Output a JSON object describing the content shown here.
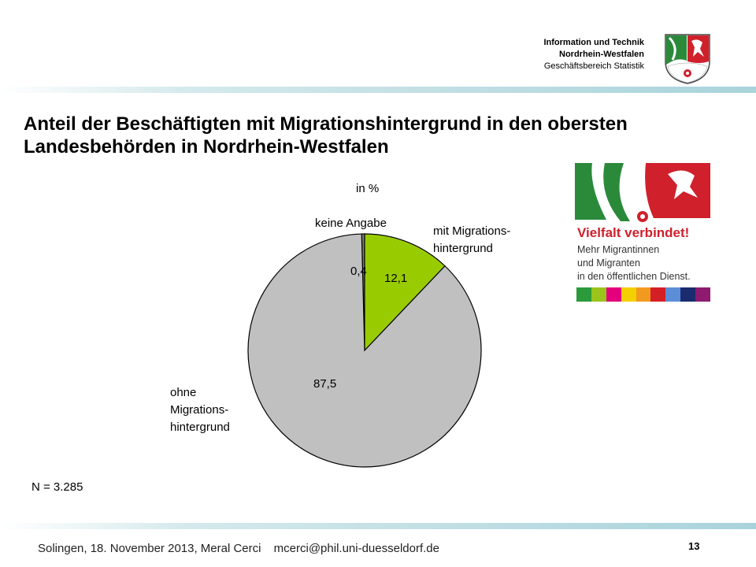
{
  "header": {
    "org_line1": "Information und Technik",
    "org_line2": "Nordrhein-Westfalen",
    "org_line3": "Geschäftsbereich Statistik"
  },
  "title": "Anteil der Beschäftigten mit Migrationshintergrund in den obersten Landesbehörden in Nordrhein-Westfalen",
  "chart_data": {
    "type": "pie",
    "unit_label": "in %",
    "slices": [
      {
        "label": "keine Angabe",
        "value": 0.4,
        "display": "0,4",
        "color": "#7f7f7f"
      },
      {
        "label_line1": "mit Migrations-",
        "label_line2": "hintergrund",
        "value": 12.1,
        "display": "12,1",
        "color": "#99cc00"
      },
      {
        "label_line1": "ohne",
        "label_line2": "Migrations-",
        "label_line3": "hintergrund",
        "value": 87.5,
        "display": "87,5",
        "color": "#c0c0c0"
      }
    ],
    "note": "N = 3.285"
  },
  "promo": {
    "title": "Vielfalt verbindet!",
    "line1": "Mehr Migrantinnen",
    "line2": "und Migranten",
    "line3": "in den öffentlichen Dienst.",
    "stripe_colors": [
      "#2a9a3a",
      "#9ac31c",
      "#e4007d",
      "#f5d000",
      "#f29a1f",
      "#d51f26",
      "#5b8ed6",
      "#1a2b6e",
      "#8e1b6f"
    ]
  },
  "footer": {
    "text": "Solingen, 18. November 2013, Meral Cerci",
    "email": "mcerci@phil.uni-duesseldorf.de",
    "page": "13"
  },
  "colors": {
    "accent_red": "#d0202c",
    "pie_outline": "#000000"
  }
}
